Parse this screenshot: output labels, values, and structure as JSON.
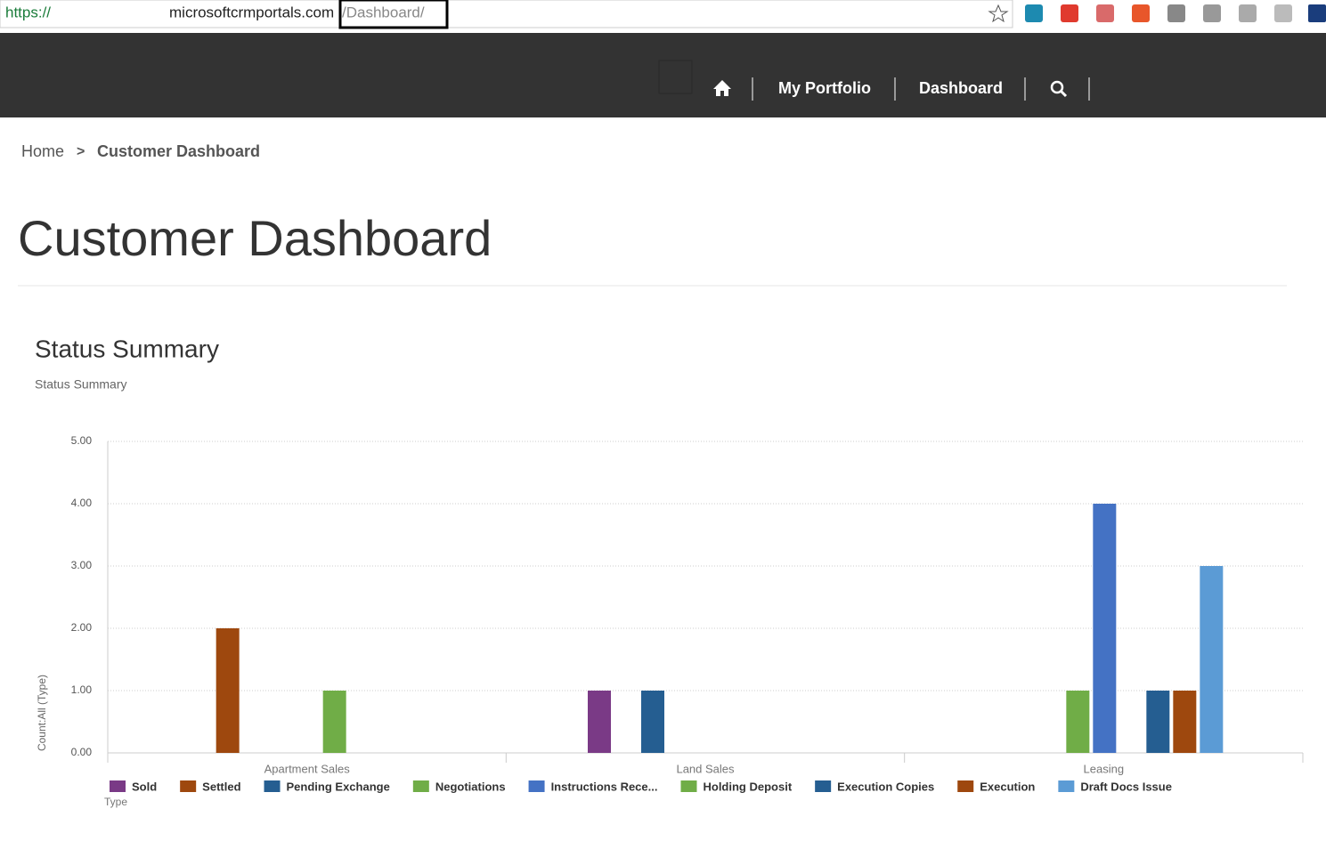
{
  "browser": {
    "scheme": "https://",
    "host": "microsoftcrmportals.com",
    "path": "/Dashboard/"
  },
  "nav": {
    "items": [
      "My Portfolio",
      "Dashboard"
    ]
  },
  "breadcrumb": {
    "home": "Home",
    "separator": ">",
    "current": "Customer Dashboard"
  },
  "page_title": "Customer Dashboard",
  "chart_data": {
    "type": "bar",
    "title": "Status Summary",
    "subtitle": "Status Summary",
    "x_label": "Type",
    "y_label": "Count:All (Type)",
    "categories": [
      "Apartment Sales",
      "Land Sales",
      "Leasing"
    ],
    "series": [
      {
        "name": "Sold",
        "color": "#7a3a86",
        "values": [
          null,
          1,
          null
        ]
      },
      {
        "name": "Settled",
        "color": "#9e480e",
        "values": [
          2,
          null,
          null
        ]
      },
      {
        "name": "Pending Exchange",
        "color": "#255e91",
        "values": [
          null,
          1,
          null
        ]
      },
      {
        "name": "Negotiations",
        "color": "#70ad47",
        "values": [
          null,
          null,
          1
        ]
      },
      {
        "name": "Instructions Rece...",
        "color": "#4472c4",
        "values": [
          null,
          null,
          4
        ]
      },
      {
        "name": "Holding Deposit",
        "color": "#70ad47",
        "values": [
          1,
          null,
          null
        ]
      },
      {
        "name": "Execution Copies",
        "color": "#255e91",
        "values": [
          null,
          null,
          1
        ]
      },
      {
        "name": "Execution",
        "color": "#9e480e",
        "values": [
          null,
          null,
          1
        ]
      },
      {
        "name": "Draft Docs Issue",
        "color": "#5b9bd5",
        "values": [
          null,
          null,
          3
        ]
      }
    ],
    "ylim": [
      0,
      5
    ],
    "yticks": [
      {
        "value": 0,
        "label": "0.00"
      },
      {
        "value": 1,
        "label": "1.00"
      },
      {
        "value": 2,
        "label": "2.00"
      },
      {
        "value": 3,
        "label": "3.00"
      },
      {
        "value": 4,
        "label": "4.00"
      },
      {
        "value": 5,
        "label": "5.00"
      }
    ],
    "grid": true
  }
}
